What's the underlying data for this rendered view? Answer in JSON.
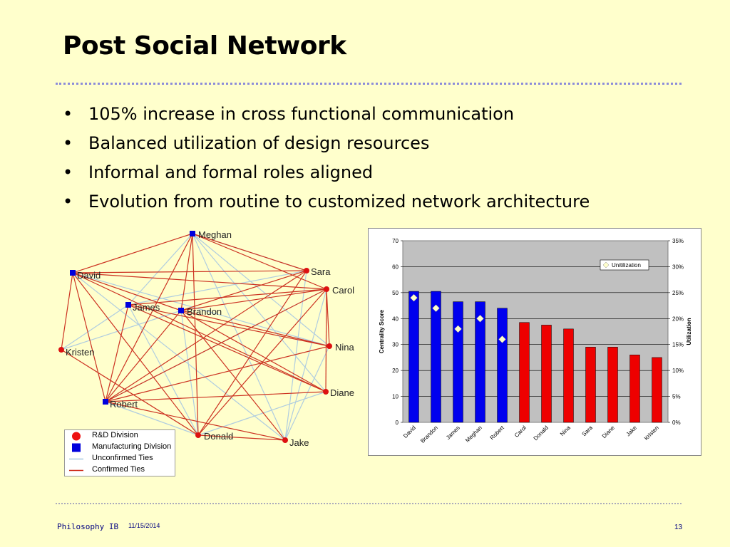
{
  "slide": {
    "title": "Post Social Network",
    "bullets": [
      "105% increase in cross functional communication",
      "Balanced utilization of design resources",
      "Informal and formal roles aligned",
      "Evolution from routine to customized network architecture"
    ],
    "footer_left": "Philosophy IB",
    "footer_date": "11/15/2014",
    "page_number": "13"
  },
  "network": {
    "colors": {
      "rd": "#dd1111",
      "mfg": "#0000dd",
      "unconfirmed": "#b0cde0",
      "confirmed": "#cc3322"
    },
    "nodes": [
      {
        "id": "meghan",
        "label": "Meghan",
        "group": "mfg"
      },
      {
        "id": "david",
        "label": "David",
        "group": "mfg"
      },
      {
        "id": "james",
        "label": "James",
        "group": "mfg"
      },
      {
        "id": "brandon",
        "label": "Brandon",
        "group": "mfg"
      },
      {
        "id": "robert",
        "label": "Robert",
        "group": "mfg"
      },
      {
        "id": "sara",
        "label": "Sara",
        "group": "rd"
      },
      {
        "id": "carol",
        "label": "Carol",
        "group": "rd"
      },
      {
        "id": "nina",
        "label": "Nina",
        "group": "rd"
      },
      {
        "id": "diane",
        "label": "Diane",
        "group": "rd"
      },
      {
        "id": "kristen",
        "label": "Kristen",
        "group": "rd"
      },
      {
        "id": "donald",
        "label": "Donald",
        "group": "rd"
      },
      {
        "id": "jake",
        "label": "Jake",
        "group": "rd"
      }
    ],
    "confirmed_ties": [
      [
        "meghan",
        "david"
      ],
      [
        "meghan",
        "sara"
      ],
      [
        "meghan",
        "carol"
      ],
      [
        "meghan",
        "robert"
      ],
      [
        "meghan",
        "donald"
      ],
      [
        "meghan",
        "brandon"
      ],
      [
        "david",
        "carol"
      ],
      [
        "david",
        "sara"
      ],
      [
        "david",
        "brandon"
      ],
      [
        "david",
        "robert"
      ],
      [
        "david",
        "kristen"
      ],
      [
        "david",
        "donald"
      ],
      [
        "david",
        "diane"
      ],
      [
        "james",
        "carol"
      ],
      [
        "james",
        "nina"
      ],
      [
        "james",
        "robert"
      ],
      [
        "james",
        "diane"
      ],
      [
        "brandon",
        "carol"
      ],
      [
        "brandon",
        "nina"
      ],
      [
        "brandon",
        "diane"
      ],
      [
        "brandon",
        "jake"
      ],
      [
        "brandon",
        "robert"
      ],
      [
        "brandon",
        "sara"
      ],
      [
        "robert",
        "sara"
      ],
      [
        "robert",
        "carol"
      ],
      [
        "robert",
        "nina"
      ],
      [
        "robert",
        "diane"
      ],
      [
        "robert",
        "jake"
      ],
      [
        "carol",
        "donald"
      ],
      [
        "carol",
        "nina"
      ],
      [
        "carol",
        "diane"
      ],
      [
        "sara",
        "donald"
      ],
      [
        "donald",
        "jake"
      ],
      [
        "kristen",
        "donald"
      ]
    ],
    "unconfirmed_ties": [
      [
        "meghan",
        "nina"
      ],
      [
        "meghan",
        "diane"
      ],
      [
        "meghan",
        "jake"
      ],
      [
        "meghan",
        "james"
      ],
      [
        "meghan",
        "sara"
      ],
      [
        "david",
        "jake"
      ],
      [
        "james",
        "kristen"
      ],
      [
        "james",
        "donald"
      ],
      [
        "james",
        "sara"
      ],
      [
        "brandon",
        "kristen"
      ],
      [
        "brandon",
        "donald"
      ],
      [
        "sara",
        "jake"
      ],
      [
        "carol",
        "jake"
      ],
      [
        "nina",
        "jake"
      ],
      [
        "diane",
        "donald"
      ],
      [
        "robert",
        "donald"
      ],
      [
        "david",
        "nina"
      ],
      [
        "carol",
        "robert"
      ]
    ]
  },
  "legend": {
    "items": [
      {
        "label": "R&D Division",
        "kind": "rd"
      },
      {
        "label": "Manufacturing Division",
        "kind": "mfg"
      },
      {
        "label": "Unconfirmed Ties",
        "kind": "unconfirmed"
      },
      {
        "label": "Confirmed Ties",
        "kind": "confirmed"
      }
    ]
  },
  "chart_data": {
    "type": "bar",
    "categories": [
      "David",
      "Brandon",
      "James",
      "Meghan",
      "Robert",
      "Carol",
      "Donald",
      "Nina",
      "Sara",
      "Diane",
      "Jake",
      "Kristen"
    ],
    "series": [
      {
        "values": [
          50.5,
          50.5,
          46.5,
          46.5,
          44,
          38.5,
          37.5,
          36,
          29,
          29,
          26,
          25
        ],
        "colors": [
          "#0000ee",
          "#0000ee",
          "#0000ee",
          "#0000ee",
          "#0000ee",
          "#ee0000",
          "#ee0000",
          "#ee0000",
          "#ee0000",
          "#ee0000",
          "#ee0000",
          "#ee0000"
        ]
      },
      {
        "name": "Unitilization",
        "axis": "right",
        "marker": "diamond",
        "values": [
          24,
          22,
          18,
          20,
          16,
          null,
          null,
          null,
          null,
          null,
          null,
          null
        ],
        "color": "#ffffcc"
      }
    ],
    "ylabel": "Centrality Score",
    "y2label": "Utilization",
    "ylim": [
      0,
      70
    ],
    "y2lim": [
      0,
      35
    ],
    "yticks": [
      "0",
      "10",
      "20",
      "30",
      "40",
      "50",
      "60",
      "70"
    ],
    "y2ticks": [
      "0%",
      "5%",
      "10%",
      "15%",
      "20%",
      "25%",
      "30%",
      "35%"
    ],
    "legend_position": "top-right",
    "plot_bg": "#c0c0c0",
    "grid": true
  }
}
